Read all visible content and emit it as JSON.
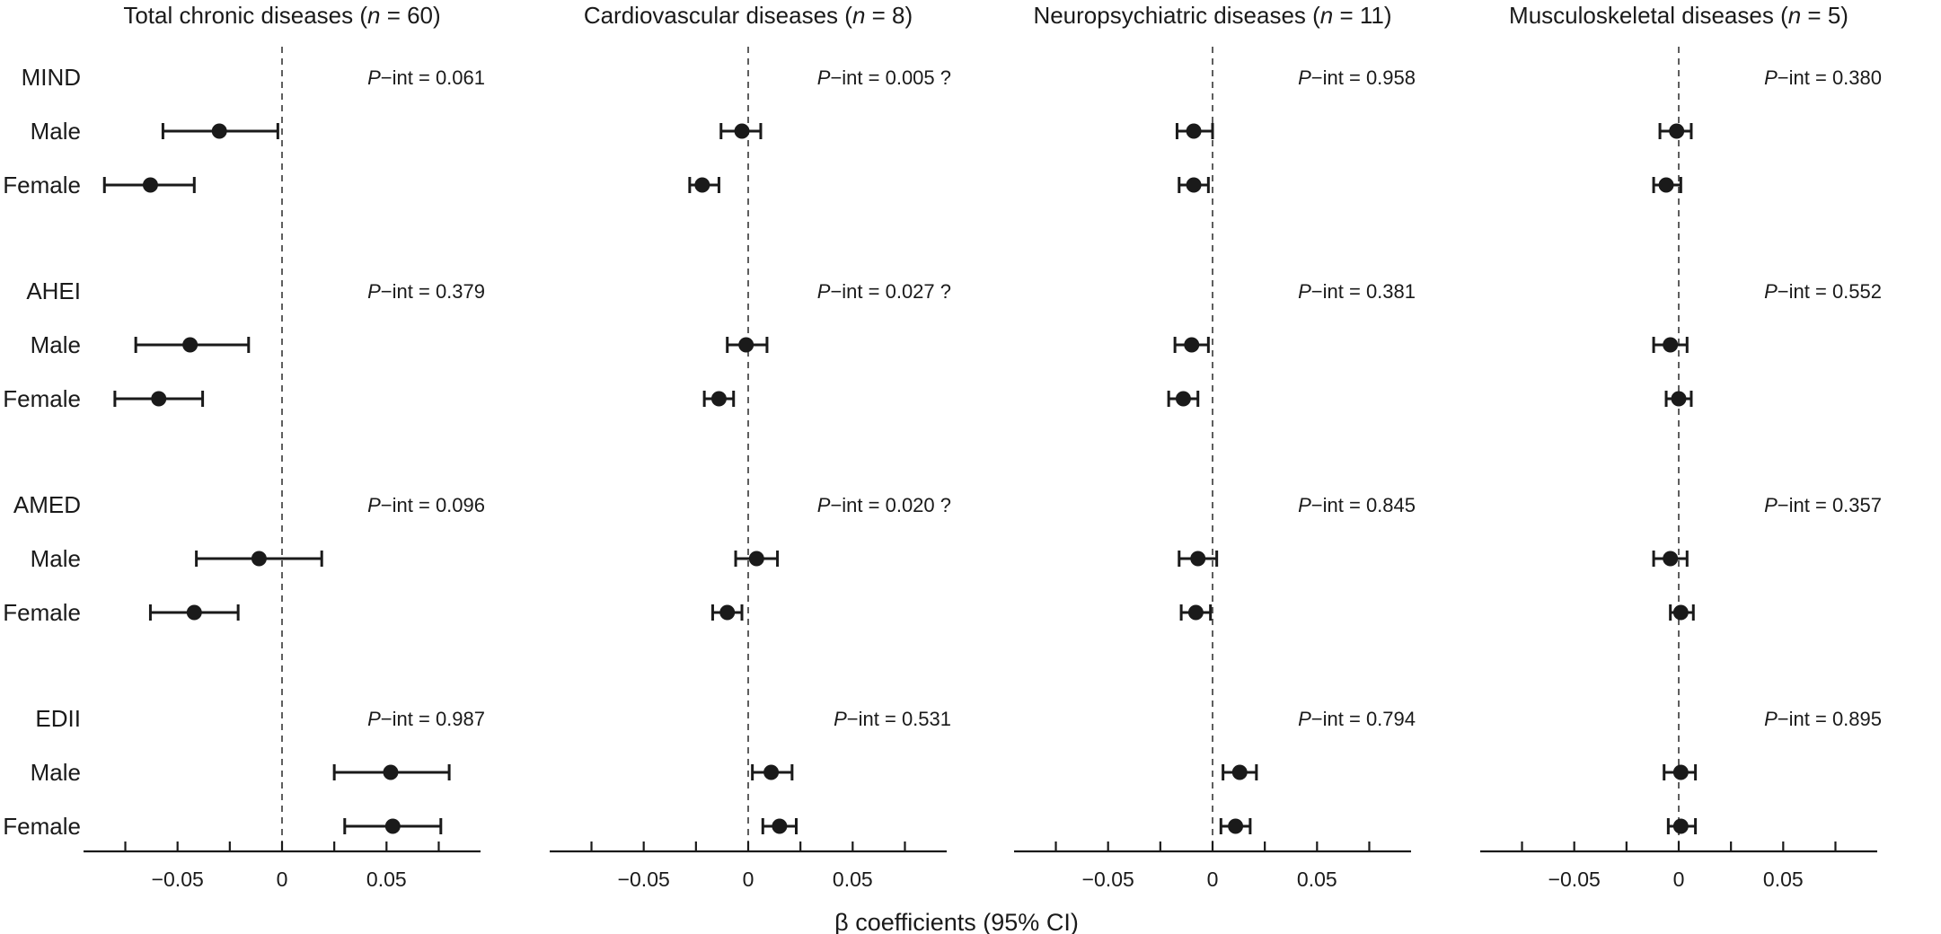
{
  "chart_data": {
    "type": "forest",
    "xlabel": "β coefficients (95% CI)",
    "pint_prefix": "P",
    "pint_suffix": "−int = ",
    "ticks": [
      -0.05,
      0,
      0.05
    ],
    "tick_labels": [
      "−0.05",
      "0",
      "0.05"
    ],
    "xlim": [
      -0.095,
      0.095
    ],
    "minor_ticks": [
      -0.075,
      -0.025,
      0.025,
      0.075
    ],
    "groups": [
      {
        "diet": "MIND",
        "rows": [
          "Male",
          "Female"
        ]
      },
      {
        "diet": "AHEI",
        "rows": [
          "Male",
          "Female"
        ]
      },
      {
        "diet": "AMED",
        "rows": [
          "Male",
          "Female"
        ]
      },
      {
        "diet": "EDII",
        "rows": [
          "Male",
          "Female"
        ]
      }
    ],
    "panels": [
      {
        "title_prefix": "Total chronic diseases (",
        "title_n": "n",
        "title_suffix": " = 60)",
        "pint": [
          "0.061",
          "0.379",
          "0.096",
          "0.987"
        ],
        "estimates": [
          [
            {
              "est": -0.03,
              "lo": -0.057,
              "hi": -0.002
            },
            {
              "est": -0.063,
              "lo": -0.085,
              "hi": -0.042
            }
          ],
          [
            {
              "est": -0.044,
              "lo": -0.07,
              "hi": -0.016
            },
            {
              "est": -0.059,
              "lo": -0.08,
              "hi": -0.038
            }
          ],
          [
            {
              "est": -0.011,
              "lo": -0.041,
              "hi": 0.019
            },
            {
              "est": -0.042,
              "lo": -0.063,
              "hi": -0.021
            }
          ],
          [
            {
              "est": 0.052,
              "lo": 0.025,
              "hi": 0.08
            },
            {
              "est": 0.053,
              "lo": 0.03,
              "hi": 0.076
            }
          ]
        ]
      },
      {
        "title_prefix": "Cardiovascular diseases (",
        "title_n": "n",
        "title_suffix": " = 8)",
        "pint": [
          "0.005 ?",
          "0.027 ?",
          "0.020 ?",
          "0.531"
        ],
        "estimates": [
          [
            {
              "est": -0.003,
              "lo": -0.013,
              "hi": 0.006
            },
            {
              "est": -0.022,
              "lo": -0.028,
              "hi": -0.014
            }
          ],
          [
            {
              "est": -0.001,
              "lo": -0.01,
              "hi": 0.009
            },
            {
              "est": -0.014,
              "lo": -0.021,
              "hi": -0.007
            }
          ],
          [
            {
              "est": 0.004,
              "lo": -0.006,
              "hi": 0.014
            },
            {
              "est": -0.01,
              "lo": -0.017,
              "hi": -0.003
            }
          ],
          [
            {
              "est": 0.011,
              "lo": 0.002,
              "hi": 0.021
            },
            {
              "est": 0.015,
              "lo": 0.007,
              "hi": 0.023
            }
          ]
        ]
      },
      {
        "title_prefix": "Neuropsychiatric diseases (",
        "title_n": "n",
        "title_suffix": " = 11)",
        "pint": [
          "0.958",
          "0.381",
          "0.845",
          "0.794"
        ],
        "estimates": [
          [
            {
              "est": -0.009,
              "lo": -0.017,
              "hi": 0.0
            },
            {
              "est": -0.009,
              "lo": -0.016,
              "hi": -0.002
            }
          ],
          [
            {
              "est": -0.01,
              "lo": -0.018,
              "hi": -0.002
            },
            {
              "est": -0.014,
              "lo": -0.021,
              "hi": -0.007
            }
          ],
          [
            {
              "est": -0.007,
              "lo": -0.016,
              "hi": 0.002
            },
            {
              "est": -0.008,
              "lo": -0.015,
              "hi": -0.001
            }
          ],
          [
            {
              "est": 0.013,
              "lo": 0.005,
              "hi": 0.021
            },
            {
              "est": 0.011,
              "lo": 0.004,
              "hi": 0.018
            }
          ]
        ]
      },
      {
        "title_prefix": "Musculoskeletal diseases (",
        "title_n": "n",
        "title_suffix": " = 5)",
        "pint": [
          "0.380",
          "0.552",
          "0.357",
          "0.895"
        ],
        "estimates": [
          [
            {
              "est": -0.001,
              "lo": -0.009,
              "hi": 0.006
            },
            {
              "est": -0.006,
              "lo": -0.012,
              "hi": 0.001
            }
          ],
          [
            {
              "est": -0.004,
              "lo": -0.012,
              "hi": 0.004
            },
            {
              "est": 0.0,
              "lo": -0.006,
              "hi": 0.006
            }
          ],
          [
            {
              "est": -0.004,
              "lo": -0.012,
              "hi": 0.004
            },
            {
              "est": 0.001,
              "lo": -0.004,
              "hi": 0.007
            }
          ],
          [
            {
              "est": 0.001,
              "lo": -0.007,
              "hi": 0.008
            },
            {
              "est": 0.001,
              "lo": -0.005,
              "hi": 0.008
            }
          ]
        ]
      }
    ]
  }
}
